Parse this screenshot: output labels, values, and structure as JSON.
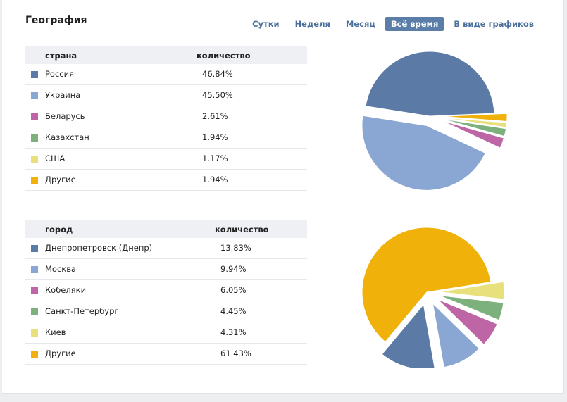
{
  "header": {
    "title": "География",
    "periods": [
      {
        "label": "Сутки"
      },
      {
        "label": "Неделя"
      },
      {
        "label": "Месяц"
      },
      {
        "label": "Всё время",
        "active": true
      },
      {
        "label": "В виде графиков"
      }
    ]
  },
  "colors": [
    "#5b7ba6",
    "#8aa7d3",
    "#bd65a5",
    "#7cb07c",
    "#e7e07d",
    "#f0b10a"
  ],
  "countries": {
    "headers": {
      "name": "страна",
      "value": "количество"
    },
    "rows": [
      {
        "name": "Россия",
        "value": "46.84%"
      },
      {
        "name": "Украина",
        "value": "45.50%"
      },
      {
        "name": "Беларусь",
        "value": "2.61%"
      },
      {
        "name": "Казахстан",
        "value": "1.94%"
      },
      {
        "name": "США",
        "value": "1.17%"
      },
      {
        "name": "Другие",
        "value": "1.94%"
      }
    ]
  },
  "cities": {
    "headers": {
      "name": "город",
      "value": "количество"
    },
    "rows": [
      {
        "name": "Днепропетровск (Днепр)",
        "value": "13.83%"
      },
      {
        "name": "Москва",
        "value": "9.94%"
      },
      {
        "name": "Кобеляки",
        "value": "6.05%"
      },
      {
        "name": "Санкт-Петербург",
        "value": "4.45%"
      },
      {
        "name": "Киев",
        "value": "4.31%"
      },
      {
        "name": "Другие",
        "value": "61.43%"
      }
    ]
  },
  "chart_data": [
    {
      "type": "pie",
      "labels": [
        "Россия",
        "Украина",
        "Беларусь",
        "Казахстан",
        "США",
        "Другие"
      ],
      "values": [
        46.84,
        45.5,
        2.61,
        1.94,
        1.17,
        1.94
      ]
    },
    {
      "type": "pie",
      "labels": [
        "Днепропетровск (Днепр)",
        "Москва",
        "Кобеляки",
        "Санкт-Петербург",
        "Киев",
        "Другие"
      ],
      "values": [
        13.83,
        9.94,
        6.05,
        4.45,
        4.31,
        61.43
      ]
    }
  ]
}
